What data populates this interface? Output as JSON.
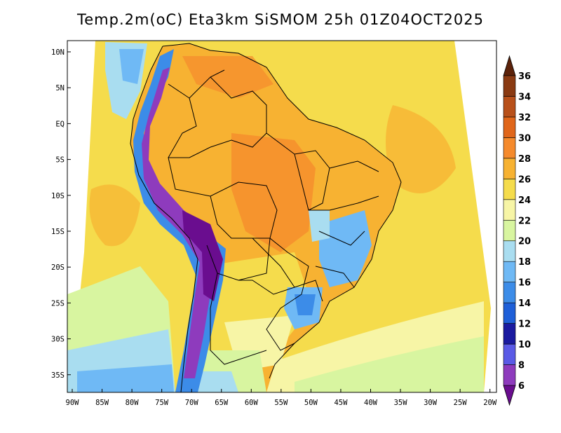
{
  "map": {
    "title": "Temp.2m(oC) Eta3km SiSMOM 25h 01Z04OCT2025",
    "variable": "Temp.2m",
    "units": "oC",
    "model": "Eta3km",
    "product": "SiSMOM",
    "forecast_hour": "25h",
    "valid_time": "01Z04OCT2025",
    "lat_ticks": [
      "10N",
      "5N",
      "EQ",
      "5S",
      "10S",
      "15S",
      "20S",
      "25S",
      "30S",
      "35S"
    ],
    "lon_ticks": [
      "90W",
      "85W",
      "80W",
      "75W",
      "70W",
      "65W",
      "60W",
      "55W",
      "50W",
      "45W",
      "40W",
      "35W",
      "30W",
      "25W",
      "20W"
    ],
    "colorbar": {
      "labels": [
        "6",
        "8",
        "10",
        "12",
        "14",
        "16",
        "18",
        "20",
        "22",
        "24",
        "26",
        "28",
        "30",
        "32",
        "34",
        "36"
      ],
      "colors": [
        "#6a0d8f",
        "#8e3bbd",
        "#5a5ae6",
        "#1a1aa0",
        "#1e5fd8",
        "#3c8ce8",
        "#6fb9f5",
        "#a9ddf0",
        "#d8f5a0",
        "#f7f5a6",
        "#f5dc4c",
        "#f7b232",
        "#f58a2c",
        "#e0661a",
        "#b8501a",
        "#8a3a12",
        "#5c220a"
      ]
    }
  }
}
